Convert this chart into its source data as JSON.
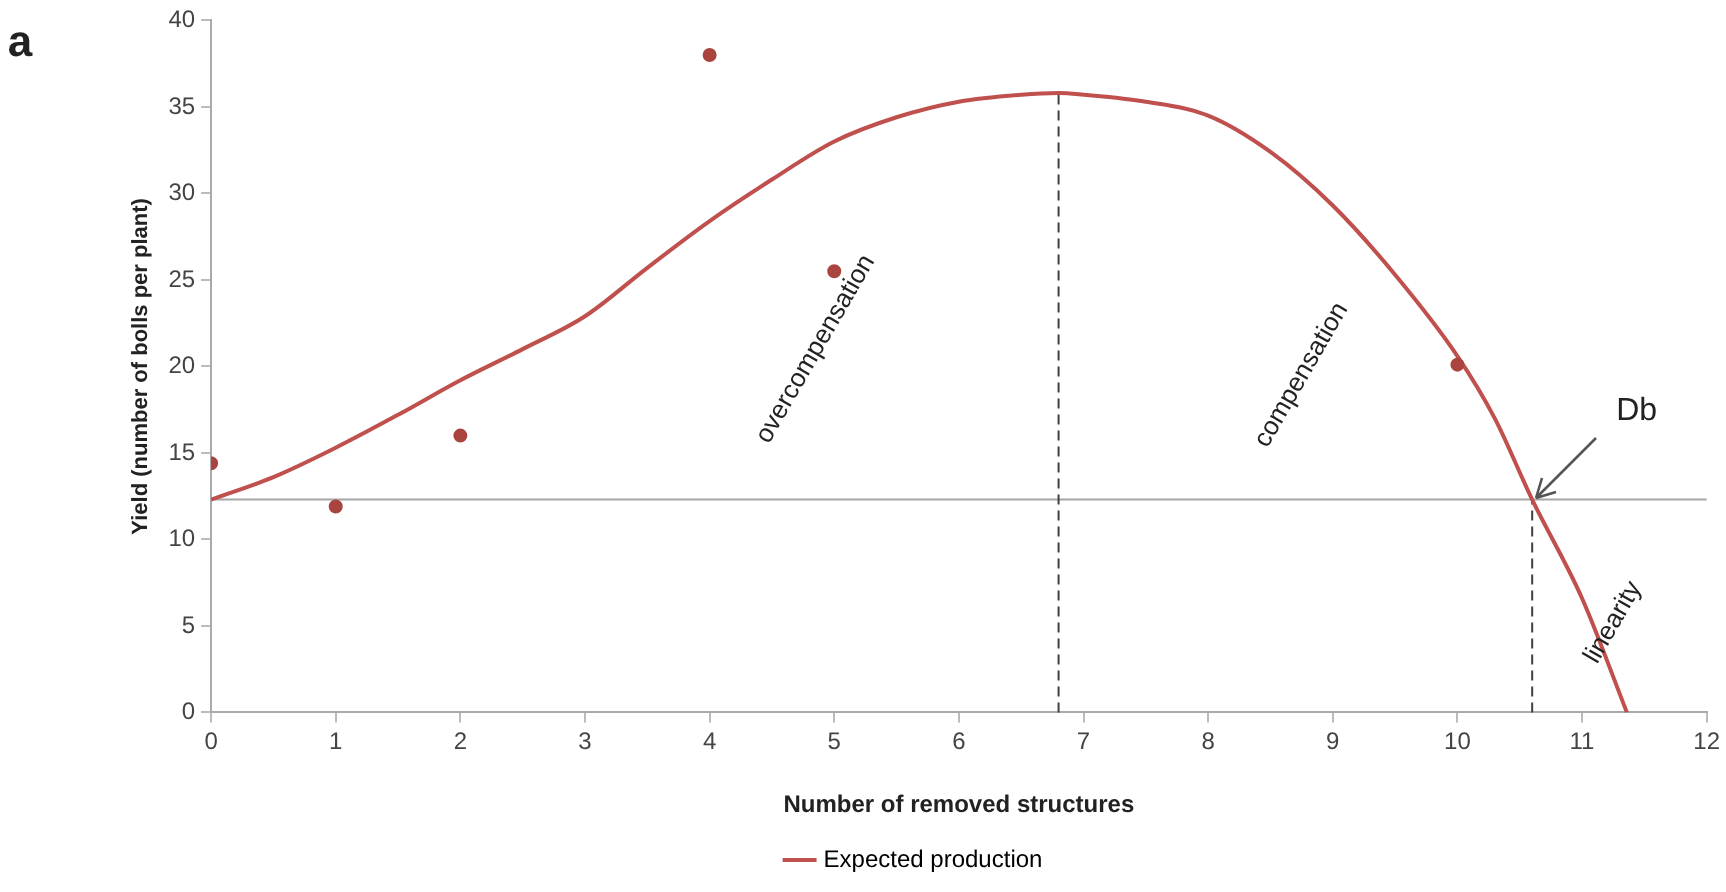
{
  "chart_data": {
    "type": "scatter",
    "xlabel": "Number of removed structures",
    "ylabel": "Yield (number of bolls per plant)",
    "xlim": [
      0,
      12
    ],
    "xticks": [
      0,
      1,
      2,
      3,
      4,
      5,
      6,
      7,
      8,
      9,
      10,
      11,
      12
    ],
    "ylim": [
      0,
      40
    ],
    "yticks": [
      0,
      5,
      10,
      15,
      20,
      25,
      30,
      35,
      40
    ],
    "grid": false,
    "legend": "bottom",
    "marker": "circle",
    "series": [
      {
        "type": "scatter",
        "color": "#a9443f",
        "x": [
          0,
          1,
          2,
          4,
          5,
          10
        ],
        "values": [
          14.4,
          11.9,
          16.0,
          38.0,
          25.5,
          20.1
        ]
      },
      {
        "type": "line",
        "name": "Expected production",
        "color": "#c0504d",
        "marker": "none",
        "line_style": "solid",
        "x": [
          0,
          0.5,
          1,
          1.5,
          2,
          2.5,
          3,
          3.5,
          4,
          4.5,
          5,
          5.5,
          6,
          6.5,
          6.8,
          7,
          7.5,
          8,
          8.5,
          9,
          9.5,
          10,
          10.3,
          10.6,
          11,
          11.36
        ],
        "values": [
          12.3,
          13.6,
          15.3,
          17.2,
          19.2,
          21,
          22.9,
          25.7,
          28.4,
          30.8,
          33.0,
          34.4,
          35.3,
          35.7,
          35.8,
          35.7,
          35.3,
          34.5,
          32.4,
          29.3,
          25.3,
          20.6,
          17,
          12.3,
          6.6,
          0
        ]
      }
    ],
    "ref_lines": [
      {
        "axis": "y",
        "value": 12.3,
        "color": "#a6a6a6",
        "line_style": "solid"
      },
      {
        "axis": "x",
        "value": 6.8,
        "color": "#404040",
        "line_style": "dashed"
      },
      {
        "axis": "x",
        "value": 10.6,
        "color": "#404040",
        "line_style": "dashed"
      }
    ],
    "annotations": [
      "a",
      "overcompensation",
      "compensation",
      "linearity",
      {
        "text": "Db",
        "x": 10.6,
        "y": 12.3
      }
    ]
  }
}
